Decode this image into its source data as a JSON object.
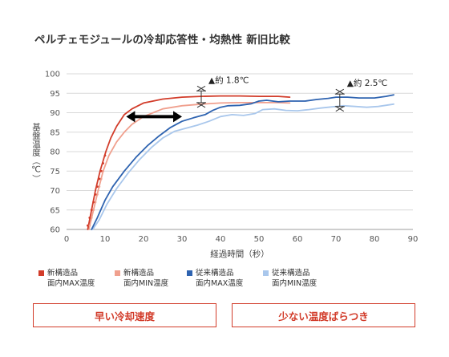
{
  "title": "ペルチェモジュールの冷却応答性・均熱性 新旧比較",
  "chart_data": {
    "type": "line",
    "xlabel": "経過時間（秒）",
    "ylabel": "基盤温度（℃）",
    "xlim": [
      0,
      90
    ],
    "ylim": [
      60,
      100
    ],
    "xticks": [
      0,
      10,
      20,
      30,
      40,
      50,
      60,
      70,
      80,
      90
    ],
    "yticks": [
      60,
      65,
      70,
      75,
      80,
      85,
      90,
      95,
      100
    ],
    "grid": "horizontal",
    "series": [
      {
        "name": "新構造品 面内MAX温度",
        "color": "#d23c2a",
        "points": [
          [
            5.5,
            60
          ],
          [
            6.5,
            65
          ],
          [
            7.5,
            70
          ],
          [
            8.7,
            75
          ],
          [
            10.2,
            80
          ],
          [
            11.5,
            83.5
          ],
          [
            13,
            86.5
          ],
          [
            15,
            89.5
          ],
          [
            17,
            91
          ],
          [
            20,
            92.5
          ],
          [
            25,
            93.5
          ],
          [
            30,
            94
          ],
          [
            35,
            94.2
          ],
          [
            40,
            94.3
          ],
          [
            45,
            94.3
          ],
          [
            50,
            94.2
          ],
          [
            55,
            94.2
          ],
          [
            58,
            94
          ]
        ]
      },
      {
        "name": "新構造品 面内MIN温度",
        "color": "#f0a08e",
        "points": [
          [
            5.8,
            60
          ],
          [
            7,
            65
          ],
          [
            8.2,
            70
          ],
          [
            9.5,
            75
          ],
          [
            11,
            79
          ],
          [
            13,
            82.5
          ],
          [
            15,
            85
          ],
          [
            17,
            87
          ],
          [
            20,
            89
          ],
          [
            25,
            91
          ],
          [
            30,
            91.8
          ],
          [
            35,
            92.2
          ],
          [
            40,
            92.5
          ],
          [
            45,
            92.6
          ],
          [
            50,
            92.6
          ],
          [
            55,
            92.6
          ],
          [
            58,
            92.5
          ]
        ]
      },
      {
        "name": "従来構造品 面内MAX温度",
        "color": "#2e63b0",
        "points": [
          [
            6.5,
            60
          ],
          [
            8,
            63
          ],
          [
            10,
            67.5
          ],
          [
            12,
            71
          ],
          [
            15,
            75
          ],
          [
            18,
            78.5
          ],
          [
            21,
            81.5
          ],
          [
            24,
            84
          ],
          [
            27,
            86.2
          ],
          [
            30,
            87.8
          ],
          [
            33,
            88.7
          ],
          [
            36,
            89.5
          ],
          [
            38,
            90.6
          ],
          [
            40,
            91.4
          ],
          [
            42,
            91.8
          ],
          [
            45,
            91.9
          ],
          [
            48,
            92.3
          ],
          [
            50,
            93
          ],
          [
            52,
            93.2
          ],
          [
            55,
            92.8
          ],
          [
            58,
            93
          ],
          [
            62,
            93
          ],
          [
            65,
            93.4
          ],
          [
            68,
            93.7
          ],
          [
            70,
            94
          ],
          [
            73,
            94
          ],
          [
            76,
            93.8
          ],
          [
            80,
            93.8
          ],
          [
            83,
            94.2
          ],
          [
            85,
            94.6
          ]
        ]
      },
      {
        "name": "従来構造品 面内MIN温度",
        "color": "#a9c7ec",
        "points": [
          [
            6.8,
            60
          ],
          [
            8.5,
            62.5
          ],
          [
            10.5,
            66.5
          ],
          [
            13,
            70.5
          ],
          [
            16,
            74.5
          ],
          [
            19,
            78
          ],
          [
            22,
            81
          ],
          [
            25,
            83.5
          ],
          [
            28,
            85.2
          ],
          [
            31,
            86
          ],
          [
            34,
            86.8
          ],
          [
            37,
            87.8
          ],
          [
            40,
            89
          ],
          [
            43,
            89.5
          ],
          [
            46,
            89.3
          ],
          [
            49,
            89.8
          ],
          [
            51,
            90.8
          ],
          [
            54,
            91
          ],
          [
            57,
            90.6
          ],
          [
            60,
            90.5
          ],
          [
            63,
            90.8
          ],
          [
            66,
            91.2
          ],
          [
            69,
            91.5
          ],
          [
            72,
            91.8
          ],
          [
            75,
            91.6
          ],
          [
            78,
            91.4
          ],
          [
            81,
            91.6
          ],
          [
            85,
            92.2
          ]
        ]
      }
    ],
    "red_dots": [
      [
        5.5,
        61
      ],
      [
        6,
        63
      ],
      [
        6.5,
        65
      ],
      [
        7,
        67
      ],
      [
        7.5,
        69
      ],
      [
        8,
        71
      ],
      [
        8.5,
        73
      ],
      [
        9,
        75
      ],
      [
        9.5,
        77
      ],
      [
        10,
        79
      ]
    ],
    "pink_dots": [
      [
        6,
        61
      ],
      [
        6.5,
        63
      ],
      [
        7,
        65
      ],
      [
        7.5,
        67
      ],
      [
        8,
        69
      ],
      [
        8.5,
        71
      ],
      [
        9,
        73
      ],
      [
        9.5,
        75
      ]
    ],
    "arrow": {
      "from": [
        15.5,
        89
      ],
      "to": [
        30,
        89
      ]
    },
    "annotations": [
      {
        "label": "▲約 1.8℃",
        "x": 35,
        "y_top": 95.6,
        "y_bottom": 92.6
      },
      {
        "label": "▲約 2.5℃",
        "x": 71,
        "y_top": 94.8,
        "y_bottom": 91.6
      }
    ]
  },
  "legend": [
    {
      "line1": "新構造品",
      "line2": "面内MAX温度",
      "color": "#d23c2a"
    },
    {
      "line1": "新構造品",
      "line2": "面内MIN温度",
      "color": "#f0a08e"
    },
    {
      "line1": "従来構造品",
      "line2": "面内MAX温度",
      "color": "#2e63b0"
    },
    {
      "line1": "従来構造品",
      "line2": "面内MIN温度",
      "color": "#a9c7ec"
    }
  ],
  "boxes": [
    {
      "label": "早い冷却速度"
    },
    {
      "label": "少ない温度ばらつき"
    }
  ]
}
